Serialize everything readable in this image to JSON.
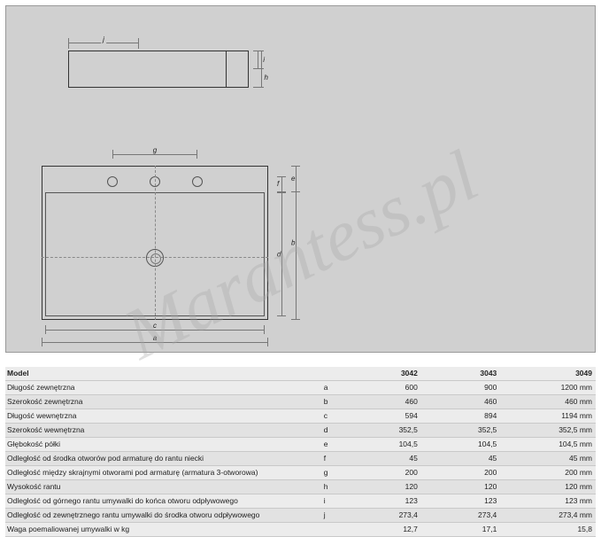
{
  "watermark": "Marantess.pl",
  "diagram": {
    "dim_labels": {
      "a": "a",
      "b": "b",
      "c": "c",
      "d": "d",
      "e": "e",
      "f": "f",
      "g": "g",
      "h": "h",
      "i": "i",
      "j": "j"
    }
  },
  "table": {
    "header": {
      "model": "Model",
      "cols": [
        "3042",
        "3043",
        "3049"
      ]
    },
    "rows": [
      {
        "label": "Długość zewnętrzna",
        "sym": "a",
        "vals": [
          "600",
          "900",
          "1200"
        ],
        "unit": "mm"
      },
      {
        "label": "Szerokość zewnętrzna",
        "sym": "b",
        "vals": [
          "460",
          "460",
          "460"
        ],
        "unit": "mm"
      },
      {
        "label": "Długość wewnętrzna",
        "sym": "c",
        "vals": [
          "594",
          "894",
          "1194"
        ],
        "unit": "mm"
      },
      {
        "label": "Szerokość wewnętrzna",
        "sym": "d",
        "vals": [
          "352,5",
          "352,5",
          "352,5"
        ],
        "unit": "mm"
      },
      {
        "label": "Głębokość półki",
        "sym": "e",
        "vals": [
          "104,5",
          "104,5",
          "104,5"
        ],
        "unit": "mm"
      },
      {
        "label": "Odległość od środka otworów pod armaturę do rantu niecki",
        "sym": "f",
        "vals": [
          "45",
          "45",
          "45"
        ],
        "unit": "mm"
      },
      {
        "label": "Odległość między skrajnymi otworami pod armaturę (armatura 3-otworowa)",
        "sym": "g",
        "vals": [
          "200",
          "200",
          "200"
        ],
        "unit": "mm"
      },
      {
        "label": "Wysokość rantu",
        "sym": "h",
        "vals": [
          "120",
          "120",
          "120"
        ],
        "unit": "mm"
      },
      {
        "label": "Odległość od górnego rantu umywalki do końca otworu odpływowego",
        "sym": "i",
        "vals": [
          "123",
          "123",
          "123"
        ],
        "unit": "mm"
      },
      {
        "label": "Odległość od zewnętrznego rantu umywalki do środka otworu odpływowego",
        "sym": "j",
        "vals": [
          "273,4",
          "273,4",
          "273,4"
        ],
        "unit": "mm"
      },
      {
        "label": "Waga poemaliowanej umywalki w kg",
        "sym": "",
        "vals": [
          "12,7",
          "17,1",
          "15,8"
        ],
        "unit": ""
      }
    ]
  },
  "styling": {
    "page_bg": "#ffffff",
    "diagram_bg": "#d0d0d0",
    "diagram_border": "#999999",
    "stroke": "#333333",
    "dim_stroke": "#777777",
    "table_row_odd": "#ececec",
    "table_row_even": "#e2e2e2",
    "font_family": "Arial",
    "base_font_size_pt": 7
  }
}
